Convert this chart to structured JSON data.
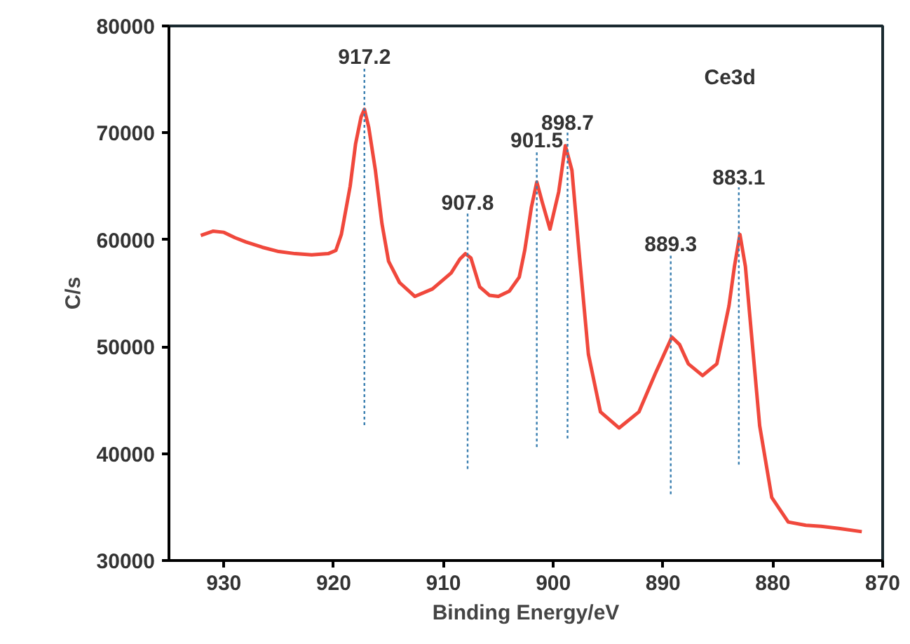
{
  "chart_data": {
    "type": "line",
    "xlabel": "Binding Energy/eV",
    "ylabel": "C/s",
    "xlim": [
      935,
      870
    ],
    "xticks": [
      930,
      920,
      910,
      900,
      890,
      880,
      870
    ],
    "ylim": [
      30000,
      80000
    ],
    "yticks": [
      30000,
      40000,
      50000,
      60000,
      70000,
      80000
    ],
    "grid": false,
    "marker": "none",
    "line_style": "solid",
    "series": [
      {
        "color": "#f0483c",
        "x": [
          932.1,
          931,
          930,
          929,
          928,
          926.5,
          925,
          923.5,
          922,
          920.5,
          919.8,
          919.3,
          918.5,
          918,
          917.5,
          917.2,
          916.8,
          916.2,
          915.6,
          915,
          914,
          912.6,
          911,
          909.3,
          908.5,
          908,
          907.5,
          906.7,
          905.8,
          905,
          904,
          903.1,
          902.6,
          902,
          901.5,
          901,
          900.3,
          899.5,
          898.9,
          898.3,
          897.6,
          896.8,
          895.7,
          894,
          892.2,
          890.7,
          889.2,
          888.5,
          887.7,
          886.4,
          885.1,
          884,
          883.5,
          883,
          882.5,
          882.1,
          881.2,
          880.1,
          878.6,
          877,
          875.6,
          874,
          871.9
        ],
        "values": [
          60400,
          60800,
          60700,
          60200,
          59800,
          59300,
          58900,
          58700,
          58600,
          58700,
          59000,
          60500,
          65000,
          69000,
          71500,
          72200,
          70500,
          66500,
          61500,
          58000,
          56000,
          54700,
          55400,
          56900,
          58200,
          58700,
          58300,
          55600,
          54800,
          54700,
          55200,
          56500,
          59000,
          63000,
          65400,
          63500,
          61000,
          64500,
          68800,
          66500,
          58300,
          49300,
          43900,
          42400,
          43900,
          47500,
          50900,
          50200,
          48400,
          47300,
          48400,
          53800,
          57500,
          60500,
          57500,
          52900,
          42600,
          35900,
          33600,
          33300,
          33200,
          33000,
          32700
        ]
      }
    ],
    "ref_lines": [
      {
        "axis": "x",
        "value": 917.2,
        "label": "917.2",
        "color": "#3a7fb0",
        "line_style": "dotted"
      },
      {
        "axis": "x",
        "value": 907.8,
        "label": "907.8",
        "color": "#3a7fb0",
        "line_style": "dotted"
      },
      {
        "axis": "x",
        "value": 901.5,
        "label": "901.5",
        "color": "#3a7fb0",
        "line_style": "dotted"
      },
      {
        "axis": "x",
        "value": 898.7,
        "label": "898.7",
        "color": "#3a7fb0",
        "line_style": "dotted"
      },
      {
        "axis": "x",
        "value": 889.3,
        "label": "889.3",
        "color": "#3a7fb0",
        "line_style": "dotted"
      },
      {
        "axis": "x",
        "value": 883.1,
        "label": "883.1",
        "color": "#3a7fb0",
        "line_style": "dotted"
      }
    ],
    "annotations": [
      "Ce3d"
    ]
  }
}
